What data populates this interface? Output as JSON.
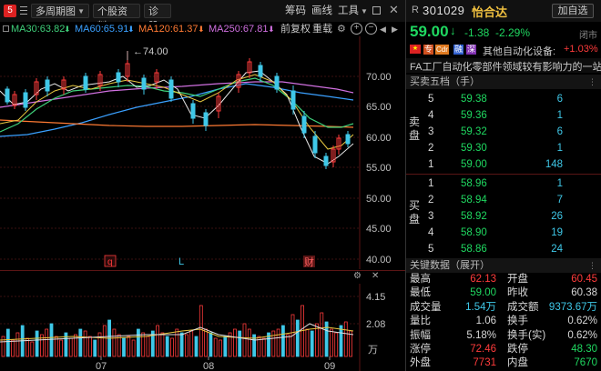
{
  "toolbar": {
    "badge": "5",
    "period_label": "多周期图",
    "profile_label": "个股资料",
    "diagnose_label": "诊股",
    "indicators_label": "筹码",
    "draw_label": "画线",
    "tools_label": "工具"
  },
  "ma_legend": {
    "ma30": "MA30:63.82",
    "ma60": "MA60:65.91",
    "ma120": "MA120:61.37",
    "ma250": "MA250:67.81",
    "fq_label": "前复权",
    "overlay_label": "重载",
    "colors": {
      "ma30": "#3fd07a",
      "ma60": "#3aa0ff",
      "ma120": "#ff7a33",
      "ma250": "#d070e0"
    }
  },
  "price_chart": {
    "y_labels": [
      "70.00",
      "65.00",
      "60.00",
      "55.00",
      "50.00",
      "45.00",
      "40.00"
    ],
    "high_marker": "74.00",
    "event_marks": [
      "q",
      "L",
      "财"
    ],
    "month_labels": [
      "07",
      "08",
      "09"
    ]
  },
  "volume_chart": {
    "y_labels": [
      "4.15",
      "2.08",
      "万"
    ]
  },
  "stock": {
    "prefix": "R",
    "code": "301029",
    "name": "怡合达",
    "add_watch": "加自选",
    "price": "59.00",
    "arrow": "↓",
    "change": "-1.38",
    "change_pct": "-2.29%",
    "status": "闭市",
    "tags": [
      "专",
      "Cdr",
      "融",
      "深"
    ],
    "industry": "其他自动化设备:",
    "industry_pct": "+1.03%",
    "intro": "FA工厂自动化零部件领域较有影响力的一站式..."
  },
  "order_book": {
    "title": "买卖五档（手）",
    "sell_label": "卖盘",
    "buy_label": "买盘",
    "asks": [
      {
        "level": "5",
        "price": "59.38",
        "vol": "6"
      },
      {
        "level": "4",
        "price": "59.36",
        "vol": "1"
      },
      {
        "level": "3",
        "price": "59.32",
        "vol": "6"
      },
      {
        "level": "2",
        "price": "59.30",
        "vol": "1"
      },
      {
        "level": "1",
        "price": "59.00",
        "vol": "148"
      }
    ],
    "bids": [
      {
        "level": "1",
        "price": "58.96",
        "vol": "1"
      },
      {
        "level": "2",
        "price": "58.94",
        "vol": "7"
      },
      {
        "level": "3",
        "price": "58.92",
        "vol": "26"
      },
      {
        "level": "4",
        "price": "58.90",
        "vol": "19"
      },
      {
        "level": "5",
        "price": "58.86",
        "vol": "24"
      }
    ]
  },
  "key_data": {
    "title": "关键数据（展开）",
    "rows": [
      {
        "l1": "最高",
        "v1": "62.13",
        "c1": "red",
        "l2": "开盘",
        "v2": "60.45",
        "c2": "red"
      },
      {
        "l1": "最低",
        "v1": "59.00",
        "c1": "green",
        "l2": "昨收",
        "v2": "60.38",
        "c2": "white"
      },
      {
        "l1": "成交量",
        "v1": "1.54万",
        "c1": "cyan",
        "l2": "成交额",
        "v2": "9373.67万",
        "c2": "cyan"
      },
      {
        "l1": "量比",
        "v1": "1.06",
        "c1": "white",
        "l2": "换手",
        "v2": "0.62%",
        "c2": "white"
      },
      {
        "l1": "振幅",
        "v1": "5.18%",
        "c1": "white",
        "l2": "换手(实)",
        "v2": "0.62%",
        "c2": "white"
      },
      {
        "l1": "涨停",
        "v1": "72.46",
        "c1": "red",
        "l2": "跌停",
        "v2": "48.30",
        "c2": "green"
      },
      {
        "l1": "外盘",
        "v1": "7731",
        "c1": "red",
        "l2": "内盘",
        "v2": "7670",
        "c2": "green"
      }
    ]
  }
}
